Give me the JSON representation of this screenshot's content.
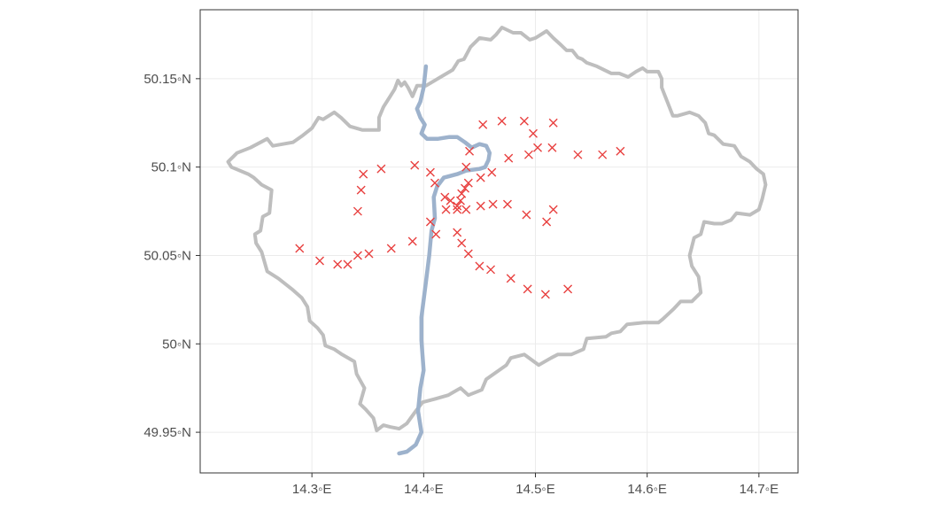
{
  "chart_data": {
    "type": "map",
    "x_axis": {
      "ticks": [
        14.3,
        14.4,
        14.5,
        14.6,
        14.7
      ],
      "tick_labels": [
        "14.3◦E",
        "14.4◦E",
        "14.5◦E",
        "14.6◦E",
        "14.7◦E"
      ],
      "range": [
        14.2,
        14.735
      ]
    },
    "y_axis": {
      "ticks": [
        49.95,
        50.0,
        50.05,
        50.1,
        50.15
      ],
      "tick_labels": [
        "49.95◦N",
        "50◦N",
        "50.05◦N",
        "50.1◦N",
        "50.15◦N"
      ],
      "range": [
        49.927,
        50.189
      ]
    },
    "grid": true,
    "colors": {
      "boundary": "#bebebe",
      "river": "#9db2cc",
      "stations": "#e8403f",
      "grid": "#ebebeb",
      "panel_border": "#333333"
    },
    "series": [
      {
        "kind": "boundary",
        "points": [
          [
            14.225,
            50.103
          ],
          [
            14.233,
            50.108
          ],
          [
            14.245,
            50.111
          ],
          [
            14.26,
            50.116
          ],
          [
            14.265,
            50.112
          ],
          [
            14.283,
            50.114
          ],
          [
            14.292,
            50.118
          ],
          [
            14.3,
            50.122
          ],
          [
            14.306,
            50.128
          ],
          [
            14.31,
            50.127
          ],
          [
            14.32,
            50.131
          ],
          [
            14.326,
            50.128
          ],
          [
            14.334,
            50.123
          ],
          [
            14.345,
            50.121
          ],
          [
            14.36,
            50.121
          ],
          [
            14.36,
            50.128
          ],
          [
            14.364,
            50.134
          ],
          [
            14.37,
            50.14
          ],
          [
            14.374,
            50.144
          ],
          [
            14.377,
            50.149
          ],
          [
            14.38,
            50.146
          ],
          [
            14.383,
            50.148
          ],
          [
            14.386,
            50.145
          ],
          [
            14.39,
            50.14
          ],
          [
            14.394,
            50.146
          ],
          [
            14.402,
            50.146
          ],
          [
            14.41,
            50.149
          ],
          [
            14.418,
            50.152
          ],
          [
            14.426,
            50.155
          ],
          [
            14.431,
            50.16
          ],
          [
            14.436,
            50.161
          ],
          [
            14.442,
            50.168
          ],
          [
            14.45,
            50.173
          ],
          [
            14.46,
            50.172
          ],
          [
            14.465,
            50.175
          ],
          [
            14.47,
            50.179
          ],
          [
            14.48,
            50.176
          ],
          [
            14.487,
            50.176
          ],
          [
            14.495,
            50.172
          ],
          [
            14.5,
            50.173
          ],
          [
            14.51,
            50.177
          ],
          [
            14.516,
            50.173
          ],
          [
            14.523,
            50.169
          ],
          [
            14.528,
            50.166
          ],
          [
            14.533,
            50.166
          ],
          [
            14.538,
            50.162
          ],
          [
            14.542,
            50.161
          ],
          [
            14.546,
            50.159
          ],
          [
            14.555,
            50.157
          ],
          [
            14.568,
            50.153
          ],
          [
            14.575,
            50.153
          ],
          [
            14.583,
            50.151
          ],
          [
            14.59,
            50.154
          ],
          [
            14.596,
            50.156
          ],
          [
            14.6,
            50.154
          ],
          [
            14.607,
            50.154
          ],
          [
            14.61,
            50.154
          ],
          [
            14.613,
            50.15
          ],
          [
            14.613,
            50.145
          ],
          [
            14.618,
            50.137
          ],
          [
            14.623,
            50.129
          ],
          [
            14.627,
            50.129
          ],
          [
            14.638,
            50.131
          ],
          [
            14.646,
            50.129
          ],
          [
            14.652,
            50.125
          ],
          [
            14.655,
            50.119
          ],
          [
            14.66,
            50.118
          ],
          [
            14.668,
            50.113
          ],
          [
            14.678,
            50.112
          ],
          [
            14.684,
            50.106
          ],
          [
            14.692,
            50.103
          ],
          [
            14.698,
            50.099
          ],
          [
            14.704,
            50.096
          ],
          [
            14.706,
            50.09
          ],
          [
            14.703,
            50.082
          ],
          [
            14.7,
            50.076
          ],
          [
            14.692,
            50.073
          ],
          [
            14.68,
            50.074
          ],
          [
            14.675,
            50.07
          ],
          [
            14.667,
            50.068
          ],
          [
            14.66,
            50.068
          ],
          [
            14.651,
            50.069
          ],
          [
            14.648,
            50.062
          ],
          [
            14.642,
            50.06
          ],
          [
            14.638,
            50.05
          ],
          [
            14.64,
            50.044
          ],
          [
            14.646,
            50.038
          ],
          [
            14.648,
            50.029
          ],
          [
            14.64,
            50.024
          ],
          [
            14.63,
            50.024
          ],
          [
            14.624,
            50.02
          ],
          [
            14.614,
            50.014
          ],
          [
            14.61,
            50.012
          ],
          [
            14.597,
            50.012
          ],
          [
            14.582,
            50.011
          ],
          [
            14.576,
            50.007
          ],
          [
            14.568,
            50.006
          ],
          [
            14.563,
            50.004
          ],
          [
            14.546,
            50.003
          ],
          [
            14.543,
            49.997
          ],
          [
            14.532,
            49.994
          ],
          [
            14.52,
            49.994
          ],
          [
            14.514,
            49.992
          ],
          [
            14.503,
            49.988
          ],
          [
            14.49,
            49.994
          ],
          [
            14.478,
            49.992
          ],
          [
            14.474,
            49.988
          ],
          [
            14.456,
            49.98
          ],
          [
            14.452,
            49.974
          ],
          [
            14.44,
            49.971
          ],
          [
            14.433,
            49.975
          ],
          [
            14.422,
            49.971
          ],
          [
            14.411,
            49.969
          ],
          [
            14.399,
            49.967
          ],
          [
            14.393,
            49.962
          ],
          [
            14.385,
            49.955
          ],
          [
            14.378,
            49.952
          ],
          [
            14.37,
            49.953
          ],
          [
            14.364,
            49.954
          ],
          [
            14.358,
            49.951
          ],
          [
            14.355,
            49.958
          ],
          [
            14.348,
            49.963
          ],
          [
            14.343,
            49.966
          ],
          [
            14.347,
            49.975
          ],
          [
            14.34,
            49.983
          ],
          [
            14.338,
            49.99
          ],
          [
            14.327,
            49.994
          ],
          [
            14.32,
            49.997
          ],
          [
            14.312,
            49.999
          ],
          [
            14.31,
            50.005
          ],
          [
            14.305,
            50.009
          ],
          [
            14.298,
            50.013
          ],
          [
            14.296,
            50.021
          ],
          [
            14.291,
            50.026
          ],
          [
            14.282,
            50.031
          ],
          [
            14.27,
            50.037
          ],
          [
            14.26,
            50.041
          ],
          [
            14.255,
            50.052
          ],
          [
            14.25,
            50.057
          ],
          [
            14.249,
            50.062
          ],
          [
            14.254,
            50.064
          ],
          [
            14.256,
            50.072
          ],
          [
            14.262,
            50.074
          ],
          [
            14.264,
            50.087
          ],
          [
            14.255,
            50.09
          ],
          [
            14.248,
            50.094
          ],
          [
            14.243,
            50.096
          ],
          [
            14.228,
            50.1
          ],
          [
            14.225,
            50.103
          ]
        ]
      },
      {
        "kind": "river",
        "points": [
          [
            14.402,
            50.157
          ],
          [
            14.4,
            50.145
          ],
          [
            14.397,
            50.137
          ],
          [
            14.394,
            50.133
          ],
          [
            14.397,
            50.128
          ],
          [
            14.401,
            50.124
          ],
          [
            14.398,
            50.119
          ],
          [
            14.403,
            50.116
          ],
          [
            14.413,
            50.116
          ],
          [
            14.423,
            50.117
          ],
          [
            14.43,
            50.117
          ],
          [
            14.437,
            50.114
          ],
          [
            14.443,
            50.111
          ],
          [
            14.45,
            50.113
          ],
          [
            14.456,
            50.112
          ],
          [
            14.459,
            50.108
          ],
          [
            14.458,
            50.104
          ],
          [
            14.455,
            50.1
          ],
          [
            14.45,
            50.099
          ],
          [
            14.438,
            50.098
          ],
          [
            14.43,
            50.096
          ],
          [
            14.418,
            50.094
          ],
          [
            14.412,
            50.089
          ],
          [
            14.409,
            50.083
          ],
          [
            14.41,
            50.071
          ],
          [
            14.407,
            50.064
          ],
          [
            14.405,
            50.05
          ],
          [
            14.402,
            50.035
          ],
          [
            14.398,
            50.015
          ],
          [
            14.398,
            50.002
          ],
          [
            14.4,
            49.985
          ],
          [
            14.397,
            49.975
          ],
          [
            14.395,
            49.962
          ],
          [
            14.398,
            49.95
          ],
          [
            14.393,
            49.943
          ],
          [
            14.385,
            49.939
          ],
          [
            14.378,
            49.938
          ]
        ]
      },
      {
        "kind": "stations",
        "marker": "x",
        "points": [
          [
            14.289,
            50.054
          ],
          [
            14.307,
            50.047
          ],
          [
            14.323,
            50.045
          ],
          [
            14.332,
            50.045
          ],
          [
            14.341,
            50.05
          ],
          [
            14.351,
            50.051
          ],
          [
            14.371,
            50.054
          ],
          [
            14.39,
            50.058
          ],
          [
            14.411,
            50.062
          ],
          [
            14.406,
            50.069
          ],
          [
            14.341,
            50.075
          ],
          [
            14.344,
            50.087
          ],
          [
            14.346,
            50.096
          ],
          [
            14.362,
            50.099
          ],
          [
            14.392,
            50.101
          ],
          [
            14.406,
            50.097
          ],
          [
            14.41,
            50.091
          ],
          [
            14.419,
            50.083
          ],
          [
            14.424,
            50.081
          ],
          [
            14.43,
            50.078
          ],
          [
            14.433,
            50.081
          ],
          [
            14.434,
            50.085
          ],
          [
            14.437,
            50.088
          ],
          [
            14.44,
            50.091
          ],
          [
            14.438,
            50.1
          ],
          [
            14.441,
            50.109
          ],
          [
            14.451,
            50.094
          ],
          [
            14.461,
            50.097
          ],
          [
            14.476,
            50.105
          ],
          [
            14.494,
            50.107
          ],
          [
            14.502,
            50.111
          ],
          [
            14.515,
            50.111
          ],
          [
            14.538,
            50.107
          ],
          [
            14.56,
            50.107
          ],
          [
            14.576,
            50.109
          ],
          [
            14.453,
            50.124
          ],
          [
            14.47,
            50.126
          ],
          [
            14.49,
            50.126
          ],
          [
            14.498,
            50.119
          ],
          [
            14.516,
            50.125
          ],
          [
            14.42,
            50.076
          ],
          [
            14.43,
            50.076
          ],
          [
            14.438,
            50.076
          ],
          [
            14.451,
            50.078
          ],
          [
            14.462,
            50.079
          ],
          [
            14.475,
            50.079
          ],
          [
            14.492,
            50.073
          ],
          [
            14.51,
            50.069
          ],
          [
            14.516,
            50.076
          ],
          [
            14.43,
            50.063
          ],
          [
            14.434,
            50.057
          ],
          [
            14.44,
            50.051
          ],
          [
            14.45,
            50.044
          ],
          [
            14.46,
            50.042
          ],
          [
            14.478,
            50.037
          ],
          [
            14.493,
            50.031
          ],
          [
            14.509,
            50.028
          ],
          [
            14.529,
            50.031
          ]
        ]
      }
    ]
  }
}
